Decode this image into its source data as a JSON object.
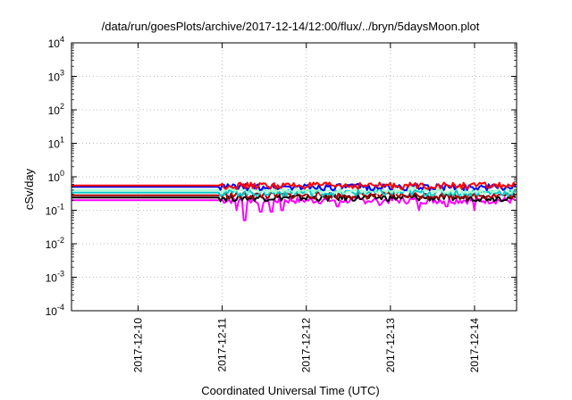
{
  "chart_data": {
    "type": "line",
    "title": "/data/run/goesPlots/archive/2017-12-14/12:00/flux/../bryn/5daysMoon.plot",
    "xlabel": "Coordinated Universal Time (UTC)",
    "ylabel": "cSv/day",
    "xlim": [
      "2017-12-09T05:00",
      "2017-12-14T12:00"
    ],
    "ylim": [
      0.0001,
      10000
    ],
    "yscale": "log",
    "grid": true,
    "x_ticks": [
      "2017-12-10",
      "2017-12-11",
      "2017-12-12",
      "2017-12-13",
      "2017-12-14"
    ],
    "y_ticks": [
      {
        "base": "10",
        "exp": "-4"
      },
      {
        "base": "10",
        "exp": "-3"
      },
      {
        "base": "10",
        "exp": "-2"
      },
      {
        "base": "10",
        "exp": "-1"
      },
      {
        "base": "10",
        "exp": "0"
      },
      {
        "base": "10",
        "exp": "1"
      },
      {
        "base": "10",
        "exp": "2"
      },
      {
        "base": "10",
        "exp": "3"
      },
      {
        "base": "10",
        "exp": "4"
      }
    ],
    "series": [
      {
        "color": "#ff00ff",
        "flat_value": 0.2,
        "start": "2017-12-10T23:00",
        "end": "2017-12-14T12:00",
        "dips": [
          {
            "t": "2017-12-11T06:30",
            "v": 0.05
          },
          {
            "t": "2017-12-11T04:00",
            "v": 0.1
          },
          {
            "t": "2017-12-11T11:00",
            "v": 0.09
          },
          {
            "t": "2017-12-11T14:00",
            "v": 0.09
          },
          {
            "t": "2017-12-11T17:00",
            "v": 0.1
          },
          {
            "t": "2017-12-12T09:00",
            "v": 0.13
          },
          {
            "t": "2017-12-12T21:00",
            "v": 0.14
          },
          {
            "t": "2017-12-13T08:00",
            "v": 0.1
          },
          {
            "t": "2017-12-13T16:00",
            "v": 0.13
          },
          {
            "t": "2017-12-14T00:00",
            "v": 0.1
          }
        ]
      },
      {
        "color": "#000000",
        "flat_value": 0.24,
        "start": "2017-12-10T23:00",
        "end": "2017-12-14T12:00",
        "dips": []
      },
      {
        "color": "#aa0000",
        "flat_value": 0.28,
        "start": "2017-12-10T23:00",
        "end": "2017-12-14T12:00",
        "dips": []
      },
      {
        "color": "#00cccc",
        "flat_value": 0.34,
        "start": "2017-12-10T23:00",
        "end": "2017-12-14T12:00",
        "dips": []
      },
      {
        "color": "#aaffcc",
        "flat_value": 0.4,
        "start": "2017-12-10T23:00",
        "end": "2017-12-14T12:00",
        "dips": []
      },
      {
        "color": "#0000ff",
        "flat_value": 0.5,
        "start": "2017-12-10T23:00",
        "end": "2017-12-14T12:00",
        "dips": []
      },
      {
        "color": "#ff0000",
        "flat_value": 0.55,
        "start": "2017-12-10T23:00",
        "end": "2017-12-14T12:00",
        "dips": []
      }
    ]
  }
}
